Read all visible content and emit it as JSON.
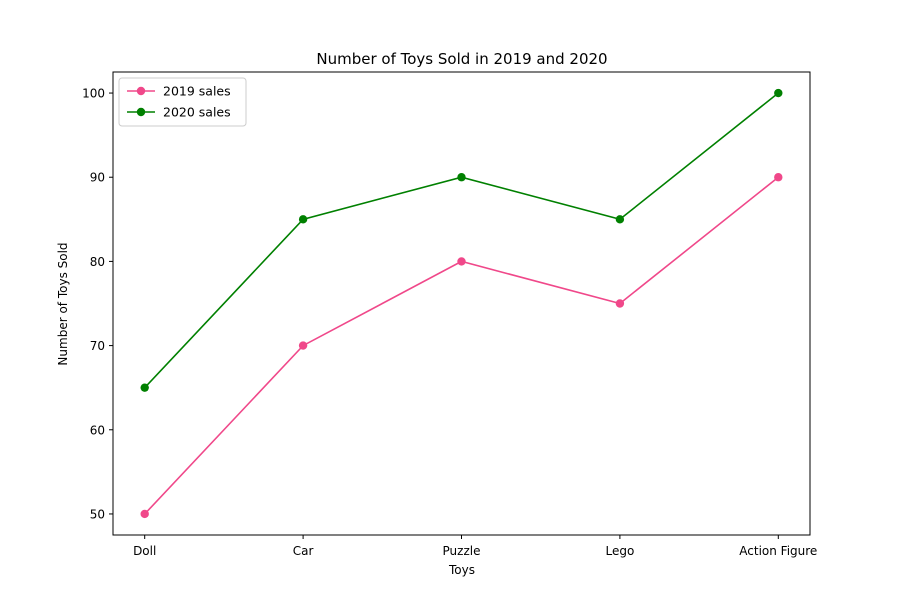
{
  "chart_data": {
    "type": "line",
    "title": "Number of Toys Sold in 2019 and 2020",
    "xlabel": "Toys",
    "ylabel": "Number of Toys Sold",
    "categories": [
      "Doll",
      "Car",
      "Puzzle",
      "Lego",
      "Action Figure"
    ],
    "yticks": [
      50,
      60,
      70,
      80,
      90,
      100
    ],
    "ylim": [
      47.5,
      102.5
    ],
    "grid": false,
    "legend_position": "upper-left",
    "series": [
      {
        "name": "2019 sales",
        "color": "#f0488a",
        "marker": "circle",
        "values": [
          50,
          70,
          80,
          75,
          90
        ]
      },
      {
        "name": "2020 sales",
        "color": "#008000",
        "marker": "circle",
        "values": [
          65,
          85,
          90,
          85,
          100
        ]
      }
    ]
  }
}
